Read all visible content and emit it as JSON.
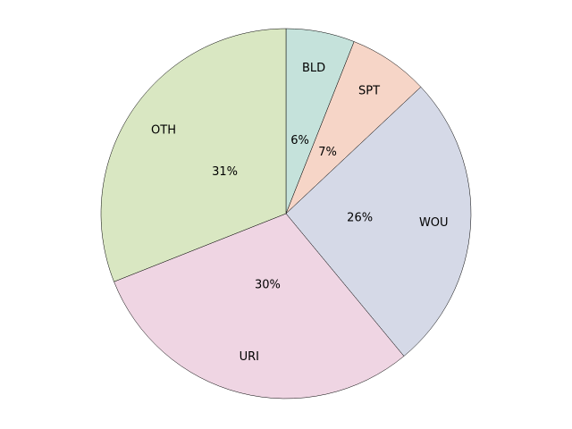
{
  "chart_data": {
    "type": "pie",
    "start_angle_deg": 90,
    "direction": "clockwise",
    "slices": [
      {
        "label": "BLD",
        "value": 6,
        "pct_label": "6%",
        "color": "#c5e2db"
      },
      {
        "label": "SPT",
        "value": 7,
        "pct_label": "7%",
        "color": "#f6d5c7"
      },
      {
        "label": "WOU",
        "value": 26,
        "pct_label": "26%",
        "color": "#d5d9e7"
      },
      {
        "label": "URI",
        "value": 30,
        "pct_label": "30%",
        "color": "#efd5e3"
      },
      {
        "label": "OTH",
        "value": 31,
        "pct_label": "31%",
        "color": "#d9e7c2"
      }
    ]
  }
}
